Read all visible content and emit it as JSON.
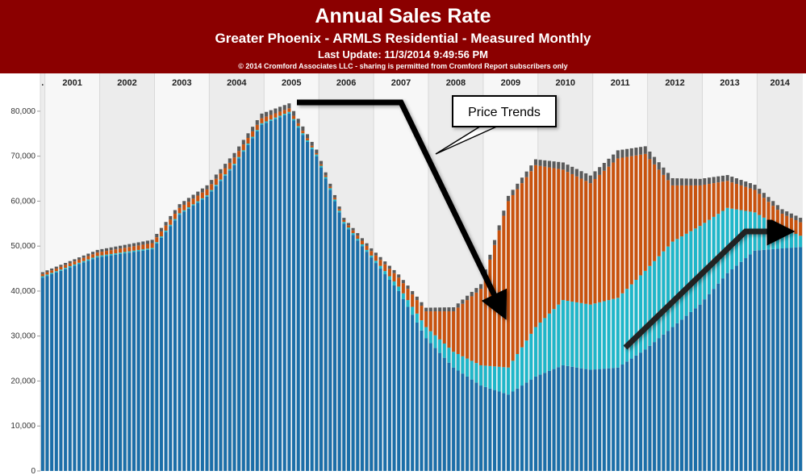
{
  "header": {
    "title": "Annual Sales Rate",
    "subtitle": "Greater Phoenix - ARMLS Residential - Measured Monthly",
    "last_update": "Last Update: 11/3/2014 9:49:56 PM",
    "copyright": "© 2014 Cromford Associates LLC - sharing is permitted from Cromford Report subscribers only"
  },
  "annotation": {
    "text": "Price Trends"
  },
  "colors": {
    "header_bg": "#8b0000",
    "series": [
      "#1b6ea8",
      "#1fb6c9",
      "#c8520e",
      "#5a5a5a"
    ],
    "year_band": "#ececec"
  },
  "chart_data": {
    "type": "bar",
    "stacked": true,
    "title": "Annual Sales Rate",
    "xlabel": "",
    "ylabel": "",
    "ylim": [
      0,
      85000
    ],
    "yticks": [
      0,
      10000,
      20000,
      30000,
      40000,
      50000,
      60000,
      70000,
      80000
    ],
    "ytick_labels": [
      "0",
      "10,000",
      "20,000",
      "30,000",
      "40,000",
      "50,000",
      "60,000",
      "70,000",
      "80,000"
    ],
    "grid": "vertical year dividers",
    "x_start": "2000-12",
    "x_end": "2014-10",
    "year_labels": [
      ".",
      "2001",
      "2002",
      "2003",
      "2004",
      "2005",
      "2006",
      "2007",
      "2008",
      "2009",
      "2010",
      "2011",
      "2012",
      "2013",
      "2014"
    ],
    "series": [
      {
        "color": "#1b6ea8",
        "anchors": [
          [
            "2000-12",
            43000
          ],
          [
            "2001-12",
            47500
          ],
          [
            "2002-12",
            49300
          ],
          [
            "2003-06",
            57000
          ],
          [
            "2003-12",
            61000
          ],
          [
            "2004-06",
            68000
          ],
          [
            "2004-12",
            77000
          ],
          [
            "2005-06",
            79500
          ],
          [
            "2005-12",
            70000
          ],
          [
            "2006-06",
            55000
          ],
          [
            "2006-12",
            47500
          ],
          [
            "2007-06",
            40000
          ],
          [
            "2007-12",
            29500
          ],
          [
            "2008-06",
            23000
          ],
          [
            "2008-12",
            19000
          ],
          [
            "2009-06",
            17000
          ],
          [
            "2009-12",
            21000
          ],
          [
            "2010-06",
            23500
          ],
          [
            "2010-12",
            22500
          ],
          [
            "2011-06",
            23000
          ],
          [
            "2011-12",
            27000
          ],
          [
            "2012-06",
            32000
          ],
          [
            "2012-12",
            37000
          ],
          [
            "2013-06",
            44000
          ],
          [
            "2013-12",
            49000
          ],
          [
            "2014-06",
            49500
          ],
          [
            "2014-10",
            49800
          ]
        ]
      },
      {
        "color": "#1fb6c9",
        "anchors": [
          [
            "2000-12",
            300
          ],
          [
            "2004-06",
            300
          ],
          [
            "2006-12",
            400
          ],
          [
            "2007-06",
            1000
          ],
          [
            "2007-12",
            2500
          ],
          [
            "2008-06",
            3500
          ],
          [
            "2008-12",
            4500
          ],
          [
            "2009-06",
            6000
          ],
          [
            "2009-12",
            11000
          ],
          [
            "2010-06",
            14500
          ],
          [
            "2010-12",
            14500
          ],
          [
            "2011-06",
            15500
          ],
          [
            "2011-12",
            17500
          ],
          [
            "2012-06",
            19000
          ],
          [
            "2012-12",
            17500
          ],
          [
            "2013-06",
            14500
          ],
          [
            "2013-12",
            8500
          ],
          [
            "2014-06",
            4500
          ],
          [
            "2014-10",
            2500
          ]
        ]
      },
      {
        "color": "#c8520e",
        "anchors": [
          [
            "2000-12",
            500
          ],
          [
            "2003-06",
            1200
          ],
          [
            "2004-06",
            1400
          ],
          [
            "2005-06",
            800
          ],
          [
            "2005-12",
            300
          ],
          [
            "2006-06",
            400
          ],
          [
            "2006-12",
            1000
          ],
          [
            "2007-06",
            2000
          ],
          [
            "2007-12",
            3500
          ],
          [
            "2008-06",
            9000
          ],
          [
            "2008-12",
            17000
          ],
          [
            "2009-06",
            37000
          ],
          [
            "2009-12",
            36000
          ],
          [
            "2010-06",
            29000
          ],
          [
            "2010-12",
            27000
          ],
          [
            "2011-06",
            31000
          ],
          [
            "2011-12",
            26000
          ],
          [
            "2012-06",
            12500
          ],
          [
            "2012-12",
            9000
          ],
          [
            "2013-06",
            6000
          ],
          [
            "2013-12",
            5000
          ],
          [
            "2014-06",
            3200
          ],
          [
            "2014-10",
            3000
          ]
        ]
      },
      {
        "color": "#5a5a5a",
        "anchors": [
          [
            "2000-12",
            400
          ],
          [
            "2004-06",
            1000
          ],
          [
            "2005-06",
            1100
          ],
          [
            "2006-06",
            500
          ],
          [
            "2007-06",
            700
          ],
          [
            "2008-06",
            900
          ],
          [
            "2009-12",
            1300
          ],
          [
            "2010-06",
            1600
          ],
          [
            "2011-06",
            1800
          ],
          [
            "2012-06",
            1600
          ],
          [
            "2013-06",
            1300
          ],
          [
            "2014-06",
            1000
          ],
          [
            "2014-10",
            1000
          ]
        ]
      }
    ]
  }
}
